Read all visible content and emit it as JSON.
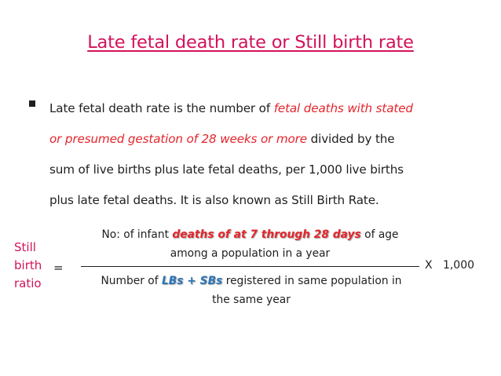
{
  "title": "Late fetal death rate or Still birth rate",
  "definition": {
    "line1_text": "Late fetal death rate is the number of ",
    "line1_emphasis": "fetal deaths with stated",
    "line2_emphasis": "or presumed gestation of 28 weeks or more",
    "line2_text": " divided by the",
    "line3": "sum of live births plus late fetal deaths, per 1,000 live births",
    "line4": "plus late fetal deaths. It is also known as Still Birth Rate."
  },
  "formula": {
    "label_line1": "Still",
    "label_line2": "birth",
    "label_line3": "ratio",
    "equals": "=",
    "numerator_prefix": "No: of infant ",
    "numerator_emphasis": "deaths of at 7 through 28 days",
    "numerator_suffix": " of age",
    "numerator_line2": "among a population in a year",
    "denominator_prefix": "Number of ",
    "denominator_emphasis": "LBs + SBs",
    "denominator_suffix": " registered in same population in",
    "denominator_line2": "the same year",
    "multiplier": "X   1,000"
  }
}
